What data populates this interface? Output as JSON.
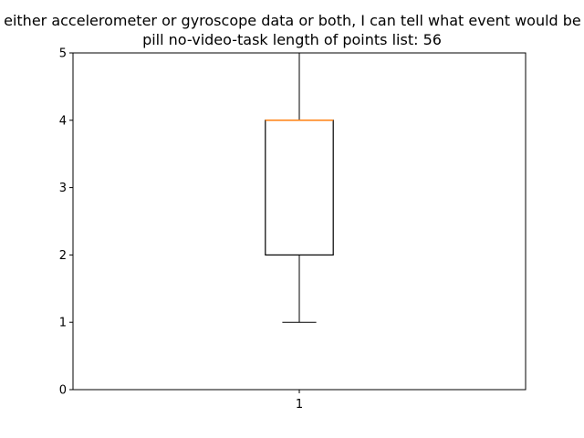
{
  "chart_data": {
    "type": "box",
    "title_line1": "With either accelerometer or gyroscope data or both, I can tell what event would be next",
    "title_line2": "pill    no-video-task    length of points list: 56",
    "categories": [
      "1"
    ],
    "boxes": [
      {
        "category": "1",
        "whisker_low": 1,
        "q1": 2,
        "median": 4,
        "q3": 4,
        "whisker_high": 5
      }
    ],
    "ylim": [
      0,
      5
    ],
    "yticks": [
      "0",
      "1",
      "2",
      "3",
      "4",
      "5"
    ],
    "grid": false,
    "colors": {
      "box": "#000000",
      "median": "#ff7f0e"
    }
  }
}
